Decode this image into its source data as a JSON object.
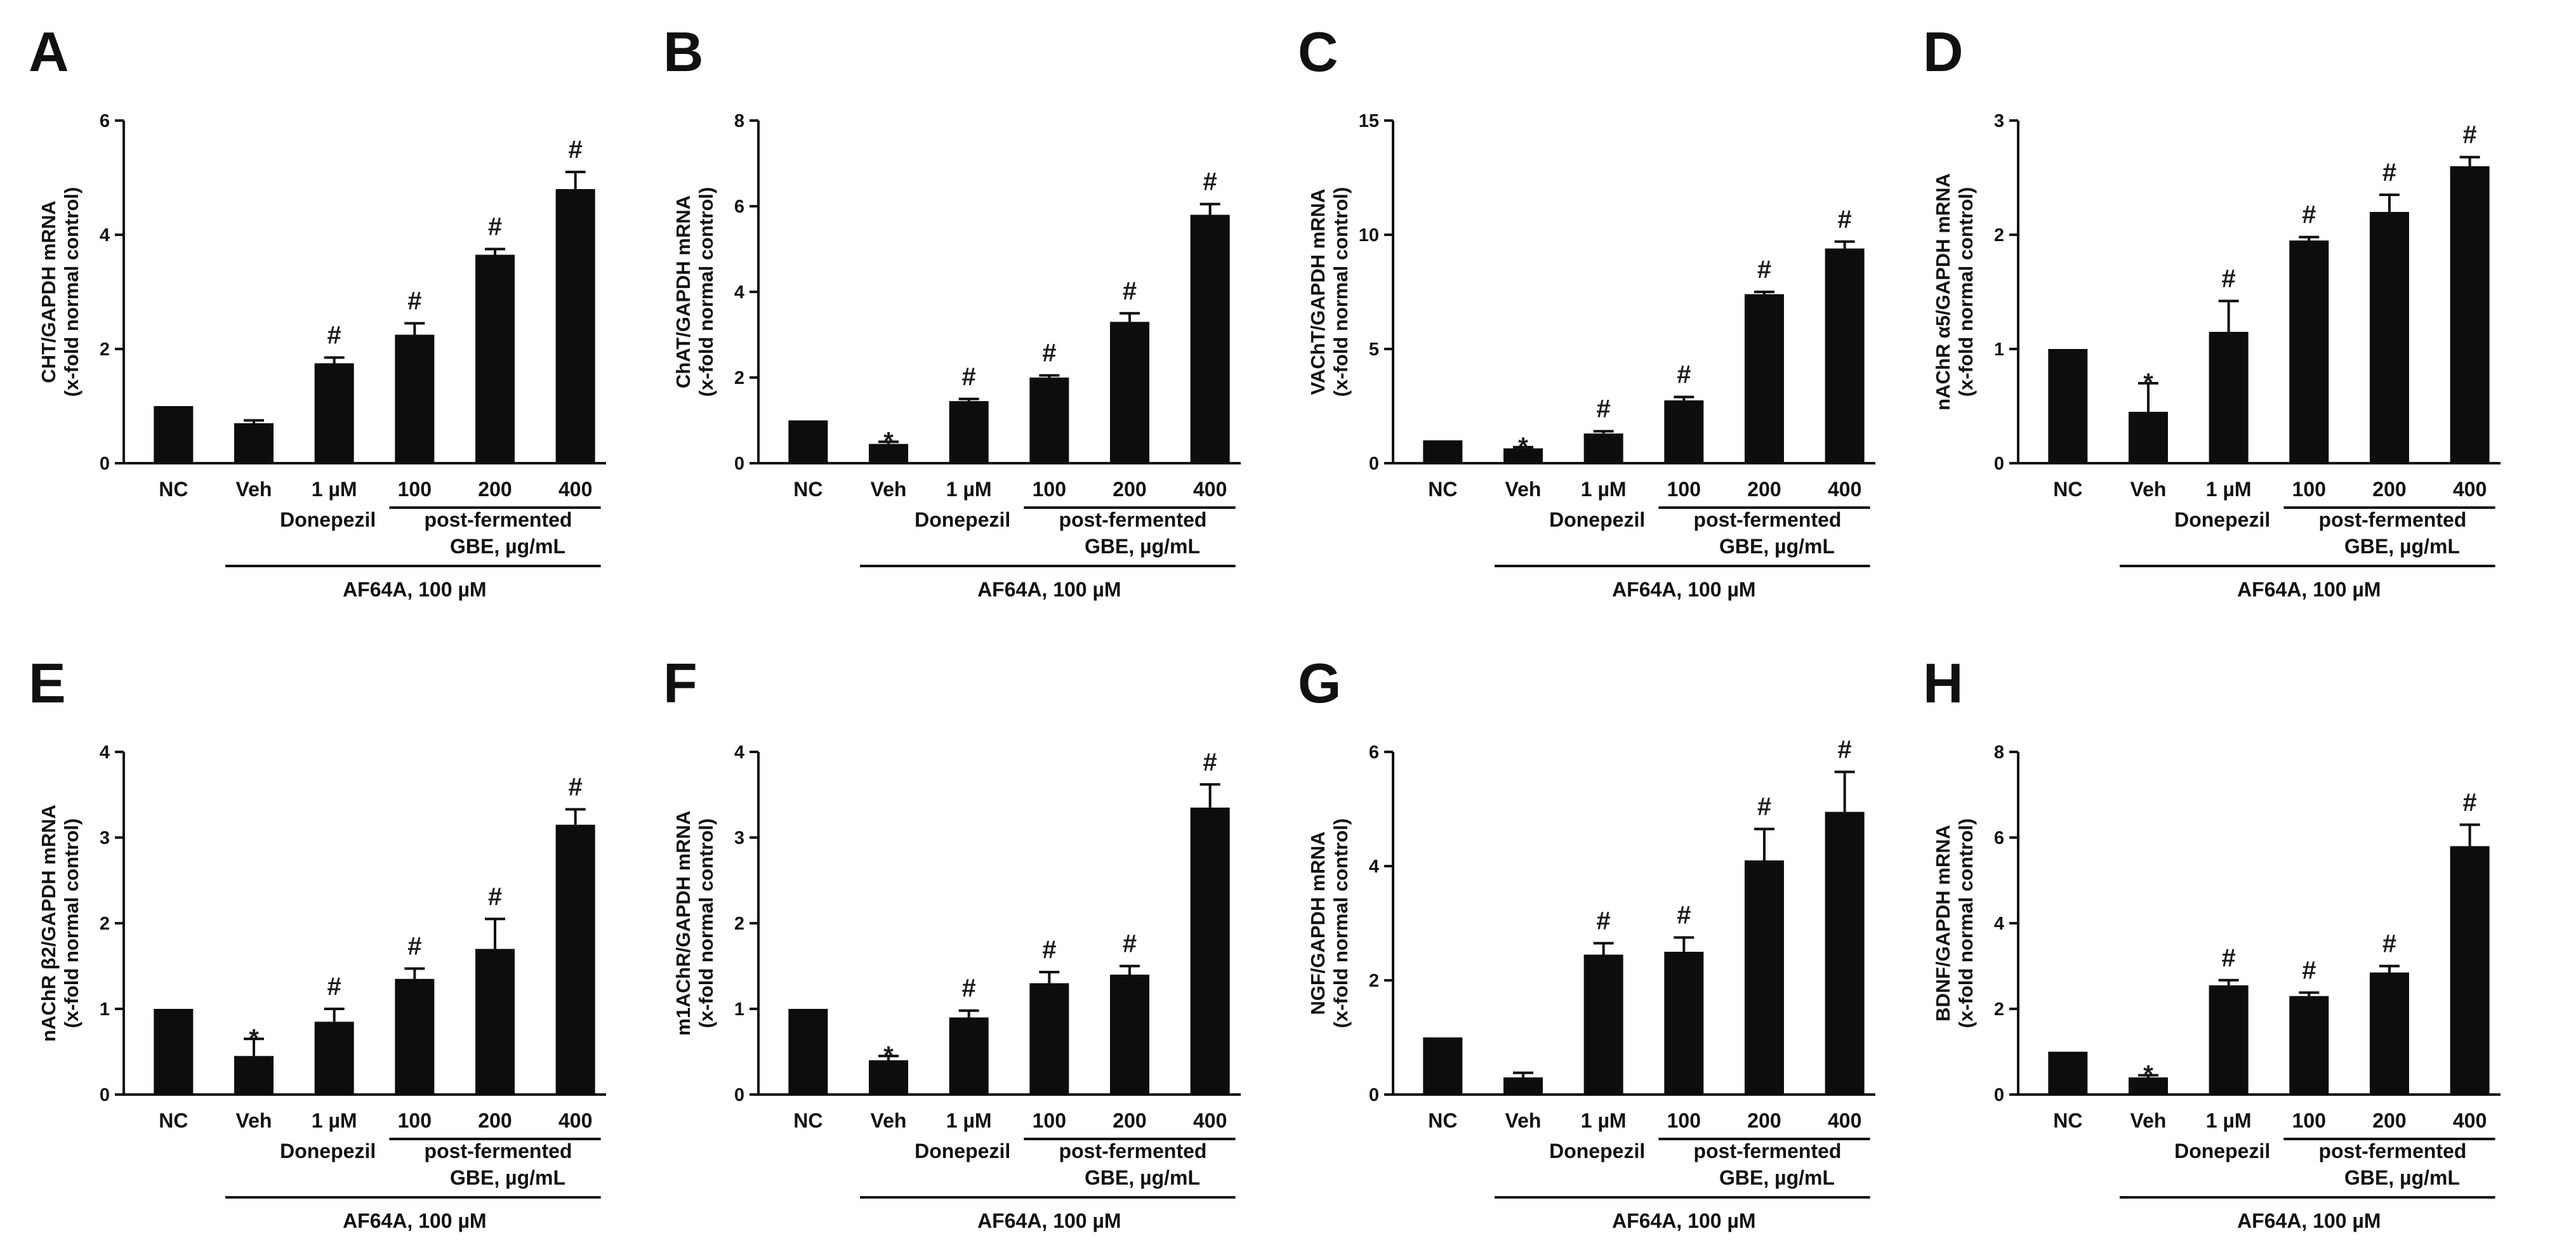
{
  "figure": {
    "shared_categories": [
      "NC",
      "Veh",
      "1 µM",
      "100",
      "200",
      "400"
    ],
    "group_labels": {
      "donepezil": "Donepezil",
      "gbe_line1": "post-fermented",
      "gbe_line2": "GBE, µg/mL",
      "treatment": "AF64A, 100 µM"
    },
    "colors": {
      "bar": "#0d0d0d",
      "axis": "#111111"
    }
  },
  "chart_data": [
    {
      "panel": "A",
      "type": "bar",
      "ylabel1": "CHT/GAPDH mRNA",
      "ylabel2": "(x-fold normal control)",
      "categories": [
        "NC",
        "Veh",
        "1 µM",
        "100",
        "200",
        "400"
      ],
      "values": [
        1.0,
        0.7,
        1.75,
        2.25,
        3.65,
        4.8
      ],
      "errors": [
        0.0,
        0.05,
        0.1,
        0.2,
        0.1,
        0.3
      ],
      "markers": [
        "",
        "",
        "#",
        "#",
        "#",
        "#"
      ],
      "ylim": [
        0,
        6
      ],
      "yticks": [
        0,
        2,
        4,
        6
      ],
      "yticks_text": [
        "0",
        "2",
        "4",
        "6"
      ]
    },
    {
      "panel": "B",
      "type": "bar",
      "ylabel1": "ChAT/GAPDH mRNA",
      "ylabel2": "(x-fold normal control)",
      "categories": [
        "NC",
        "Veh",
        "1 µM",
        "100",
        "200",
        "400"
      ],
      "values": [
        1.0,
        0.45,
        1.45,
        2.0,
        3.3,
        5.8
      ],
      "errors": [
        0.0,
        0.05,
        0.05,
        0.05,
        0.2,
        0.25
      ],
      "markers": [
        "",
        "*",
        "#",
        "#",
        "#",
        "#"
      ],
      "ylim": [
        0,
        8
      ],
      "yticks": [
        0,
        2,
        4,
        6,
        8
      ],
      "yticks_text": [
        "0",
        "2",
        "4",
        "6",
        "8"
      ]
    },
    {
      "panel": "C",
      "type": "bar",
      "ylabel1": "VAChT/GAPDH mRNA",
      "ylabel2": "(x-fold normal control)",
      "categories": [
        "NC",
        "Veh",
        "1 µM",
        "100",
        "200",
        "400"
      ],
      "values": [
        1.0,
        0.65,
        1.3,
        2.75,
        7.4,
        9.4
      ],
      "errors": [
        0.0,
        0.05,
        0.1,
        0.15,
        0.1,
        0.3
      ],
      "markers": [
        "",
        "*",
        "#",
        "#",
        "#",
        "#"
      ],
      "ylim": [
        0,
        15
      ],
      "yticks": [
        0,
        5,
        10,
        15
      ],
      "yticks_text": [
        "0",
        "5",
        "10",
        "15"
      ]
    },
    {
      "panel": "D",
      "type": "bar",
      "ylabel1": "nAChR α5/GAPDH mRNA",
      "ylabel2": "(x-fold normal control)",
      "categories": [
        "NC",
        "Veh",
        "1 µM",
        "100",
        "200",
        "400"
      ],
      "values": [
        1.0,
        0.45,
        1.15,
        1.95,
        2.2,
        2.6
      ],
      "errors": [
        0.0,
        0.25,
        0.27,
        0.03,
        0.15,
        0.08
      ],
      "markers": [
        "",
        "*",
        "#",
        "#",
        "#",
        "#"
      ],
      "ylim": [
        0,
        3
      ],
      "yticks": [
        0,
        1,
        2,
        3
      ],
      "yticks_text": [
        "0",
        "1",
        "2",
        "3"
      ]
    },
    {
      "panel": "E",
      "type": "bar",
      "ylabel1": "nAChR β2/GAPDH mRNA",
      "ylabel2": "(x-fold normal control)",
      "categories": [
        "NC",
        "Veh",
        "1 µM",
        "100",
        "200",
        "400"
      ],
      "values": [
        1.0,
        0.45,
        0.85,
        1.35,
        1.7,
        3.15
      ],
      "errors": [
        0.0,
        0.2,
        0.15,
        0.12,
        0.35,
        0.18
      ],
      "markers": [
        "",
        "*",
        "#",
        "#",
        "#",
        "#"
      ],
      "ylim": [
        0,
        4
      ],
      "yticks": [
        0,
        1,
        2,
        3,
        4
      ],
      "yticks_text": [
        "0",
        "1",
        "2",
        "3",
        "4"
      ]
    },
    {
      "panel": "F",
      "type": "bar",
      "ylabel1": "m1AChR/GAPDH mRNA",
      "ylabel2": "(x-fold normal control)",
      "categories": [
        "NC",
        "Veh",
        "1 µM",
        "100",
        "200",
        "400"
      ],
      "values": [
        1.0,
        0.4,
        0.9,
        1.3,
        1.4,
        3.35
      ],
      "errors": [
        0.0,
        0.05,
        0.08,
        0.13,
        0.1,
        0.27
      ],
      "markers": [
        "",
        "*",
        "#",
        "#",
        "#",
        "#"
      ],
      "ylim": [
        0,
        4
      ],
      "yticks": [
        0,
        1,
        2,
        3,
        4
      ],
      "yticks_text": [
        "0",
        "1",
        "2",
        "3",
        "4"
      ]
    },
    {
      "panel": "G",
      "type": "bar",
      "ylabel1": "NGF/GAPDH mRNA",
      "ylabel2": "(x-fold normal control)",
      "categories": [
        "NC",
        "Veh",
        "1 µM",
        "100",
        "200",
        "400"
      ],
      "values": [
        1.0,
        0.3,
        2.45,
        2.5,
        4.1,
        4.95
      ],
      "errors": [
        0.0,
        0.08,
        0.2,
        0.25,
        0.55,
        0.7
      ],
      "markers": [
        "",
        "",
        "#",
        "#",
        "#",
        "#"
      ],
      "ylim": [
        0,
        6
      ],
      "yticks": [
        0,
        2,
        4,
        6
      ],
      "yticks_text": [
        "0",
        "2",
        "4",
        "6"
      ]
    },
    {
      "panel": "H",
      "type": "bar",
      "ylabel1": "BDNF/GAPDH mRNA",
      "ylabel2": "(x-fold normal control)",
      "categories": [
        "NC",
        "Veh",
        "1 µM",
        "100",
        "200",
        "400"
      ],
      "values": [
        1.0,
        0.4,
        2.55,
        2.3,
        2.85,
        5.8
      ],
      "errors": [
        0.0,
        0.05,
        0.12,
        0.08,
        0.15,
        0.5
      ],
      "markers": [
        "",
        "*",
        "#",
        "#",
        "#",
        "#"
      ],
      "ylim": [
        0,
        8
      ],
      "yticks": [
        0,
        2,
        4,
        6,
        8
      ],
      "yticks_text": [
        "0",
        "2",
        "4",
        "6",
        "8"
      ]
    }
  ]
}
